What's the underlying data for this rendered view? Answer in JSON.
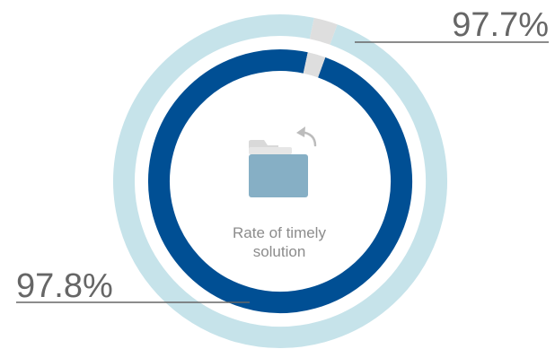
{
  "chart_data": {
    "type": "pie",
    "center_label": {
      "line1": "Rate of timely",
      "line2": "solution"
    },
    "series": [
      {
        "ring": "outer",
        "value_percent": 97.7,
        "label": "97.7%",
        "color": "#c6e3ea",
        "remainder_color": "#dedede"
      },
      {
        "ring": "inner",
        "value_percent": 97.8,
        "label": "97.8%",
        "color": "#004f94",
        "remainder_color": "#dedede"
      }
    ],
    "leader_line_color": "#666666",
    "icon": "folder-with-return-arrow-icon",
    "icon_color": "#86afc5"
  }
}
